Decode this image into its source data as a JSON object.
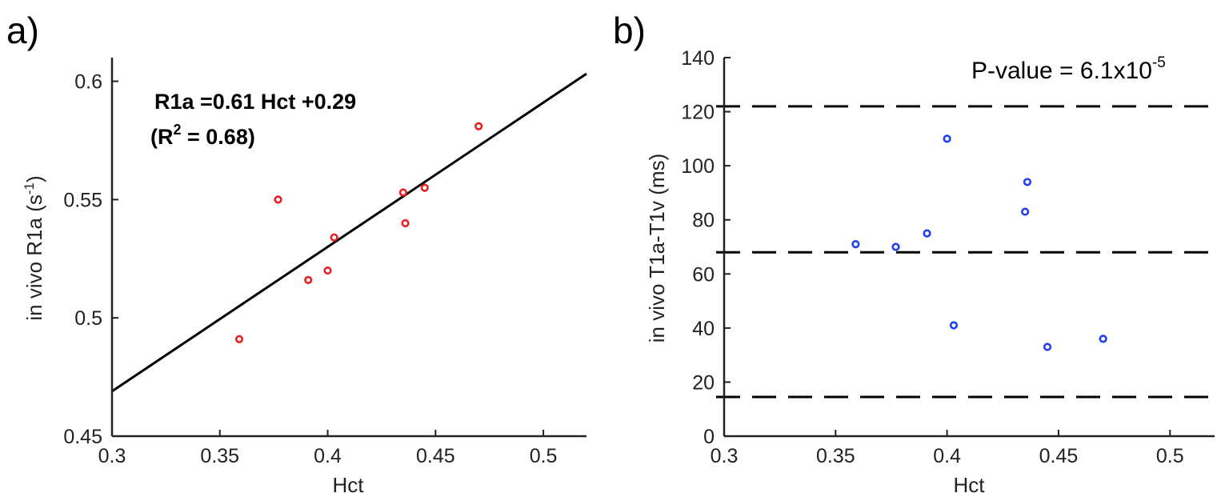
{
  "panel_labels": {
    "a": "a)",
    "b": "b)"
  },
  "chart_data": [
    {
      "id": "a",
      "type": "scatter",
      "title": "",
      "xlabel": "Hct",
      "ylabel_main": "in vivo R1a (s",
      "ylabel_sup": "-1",
      "ylabel_close": ")",
      "xlim": [
        0.3,
        0.52
      ],
      "ylim": [
        0.45,
        0.61
      ],
      "xticks": [
        0.3,
        0.35,
        0.4,
        0.45,
        0.5
      ],
      "xtick_labels": [
        "0.3",
        "0.35",
        "0.4",
        "0.45",
        "0.5"
      ],
      "yticks": [
        0.45,
        0.5,
        0.55,
        0.6
      ],
      "ytick_labels": [
        "0.45",
        "0.5",
        "0.55",
        "0.6"
      ],
      "marker_color": "#e82020",
      "points": [
        {
          "x": 0.359,
          "y": 0.491
        },
        {
          "x": 0.377,
          "y": 0.55
        },
        {
          "x": 0.391,
          "y": 0.516
        },
        {
          "x": 0.4,
          "y": 0.52
        },
        {
          "x": 0.403,
          "y": 0.534
        },
        {
          "x": 0.435,
          "y": 0.553
        },
        {
          "x": 0.436,
          "y": 0.54
        },
        {
          "x": 0.445,
          "y": 0.555
        },
        {
          "x": 0.47,
          "y": 0.581
        }
      ],
      "fit_line": {
        "slope": 0.61,
        "intercept": 0.286,
        "x_range": [
          0.3,
          0.52
        ],
        "color": "#000000"
      },
      "annotation_line1": "R1a =0.61 Hct +0.29",
      "annotation_line2_pre": "(R",
      "annotation_line2_sup": "2",
      "annotation_line2_post": " = 0.68)"
    },
    {
      "id": "b",
      "type": "scatter",
      "title": "",
      "xlabel": "Hct",
      "ylabel": "in vivo T1a-T1v (ms)",
      "xlim": [
        0.3,
        0.52
      ],
      "ylim": [
        0,
        140
      ],
      "xticks": [
        0.3,
        0.35,
        0.4,
        0.45,
        0.5
      ],
      "xtick_labels": [
        "0.3",
        "0.35",
        "0.4",
        "0.45",
        "0.5"
      ],
      "yticks": [
        0,
        20,
        40,
        60,
        80,
        100,
        120,
        140
      ],
      "ytick_labels": [
        "0",
        "20",
        "40",
        "60",
        "80",
        "100",
        "120",
        "140"
      ],
      "marker_color": "#2040f0",
      "points": [
        {
          "x": 0.359,
          "y": 71
        },
        {
          "x": 0.377,
          "y": 70
        },
        {
          "x": 0.391,
          "y": 75
        },
        {
          "x": 0.4,
          "y": 110
        },
        {
          "x": 0.403,
          "y": 41
        },
        {
          "x": 0.435,
          "y": 83
        },
        {
          "x": 0.436,
          "y": 94
        },
        {
          "x": 0.445,
          "y": 33
        },
        {
          "x": 0.47,
          "y": 36
        }
      ],
      "hlines": [
        {
          "y": 122,
          "style": "dashed"
        },
        {
          "y": 68,
          "style": "dashed"
        },
        {
          "y": 14.5,
          "style": "dashed"
        }
      ],
      "annotation_pre": "P-value = 6.1x10",
      "annotation_sup": "-5"
    }
  ]
}
